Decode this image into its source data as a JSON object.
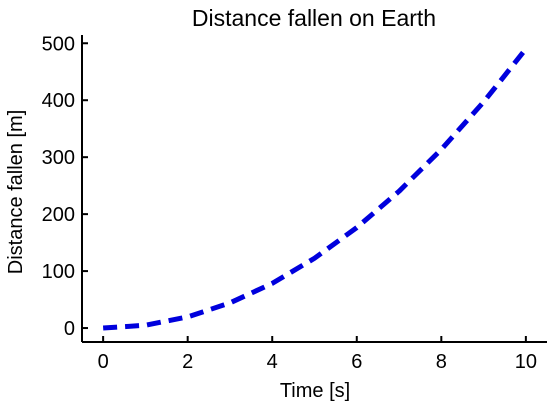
{
  "chart_data": {
    "type": "line",
    "title": "Distance fallen on Earth",
    "xlabel": "Time [s]",
    "ylabel": "Distance fallen [m]",
    "xlim": [
      -0.5,
      10.5
    ],
    "ylim": [
      -24.5,
      514.5
    ],
    "xticks": [
      0,
      2,
      4,
      6,
      8,
      10
    ],
    "yticks": [
      0,
      100,
      200,
      300,
      400,
      500
    ],
    "grid": false,
    "series": [
      {
        "color": "#0000dd",
        "linestyle": "dashed",
        "x": [
          0,
          1,
          2,
          3,
          4,
          5,
          6,
          7,
          8,
          9,
          10
        ],
        "y": [
          0,
          4.9,
          19.6,
          44.1,
          78.4,
          122.5,
          176.4,
          240.1,
          313.6,
          396.9,
          490
        ]
      }
    ]
  }
}
